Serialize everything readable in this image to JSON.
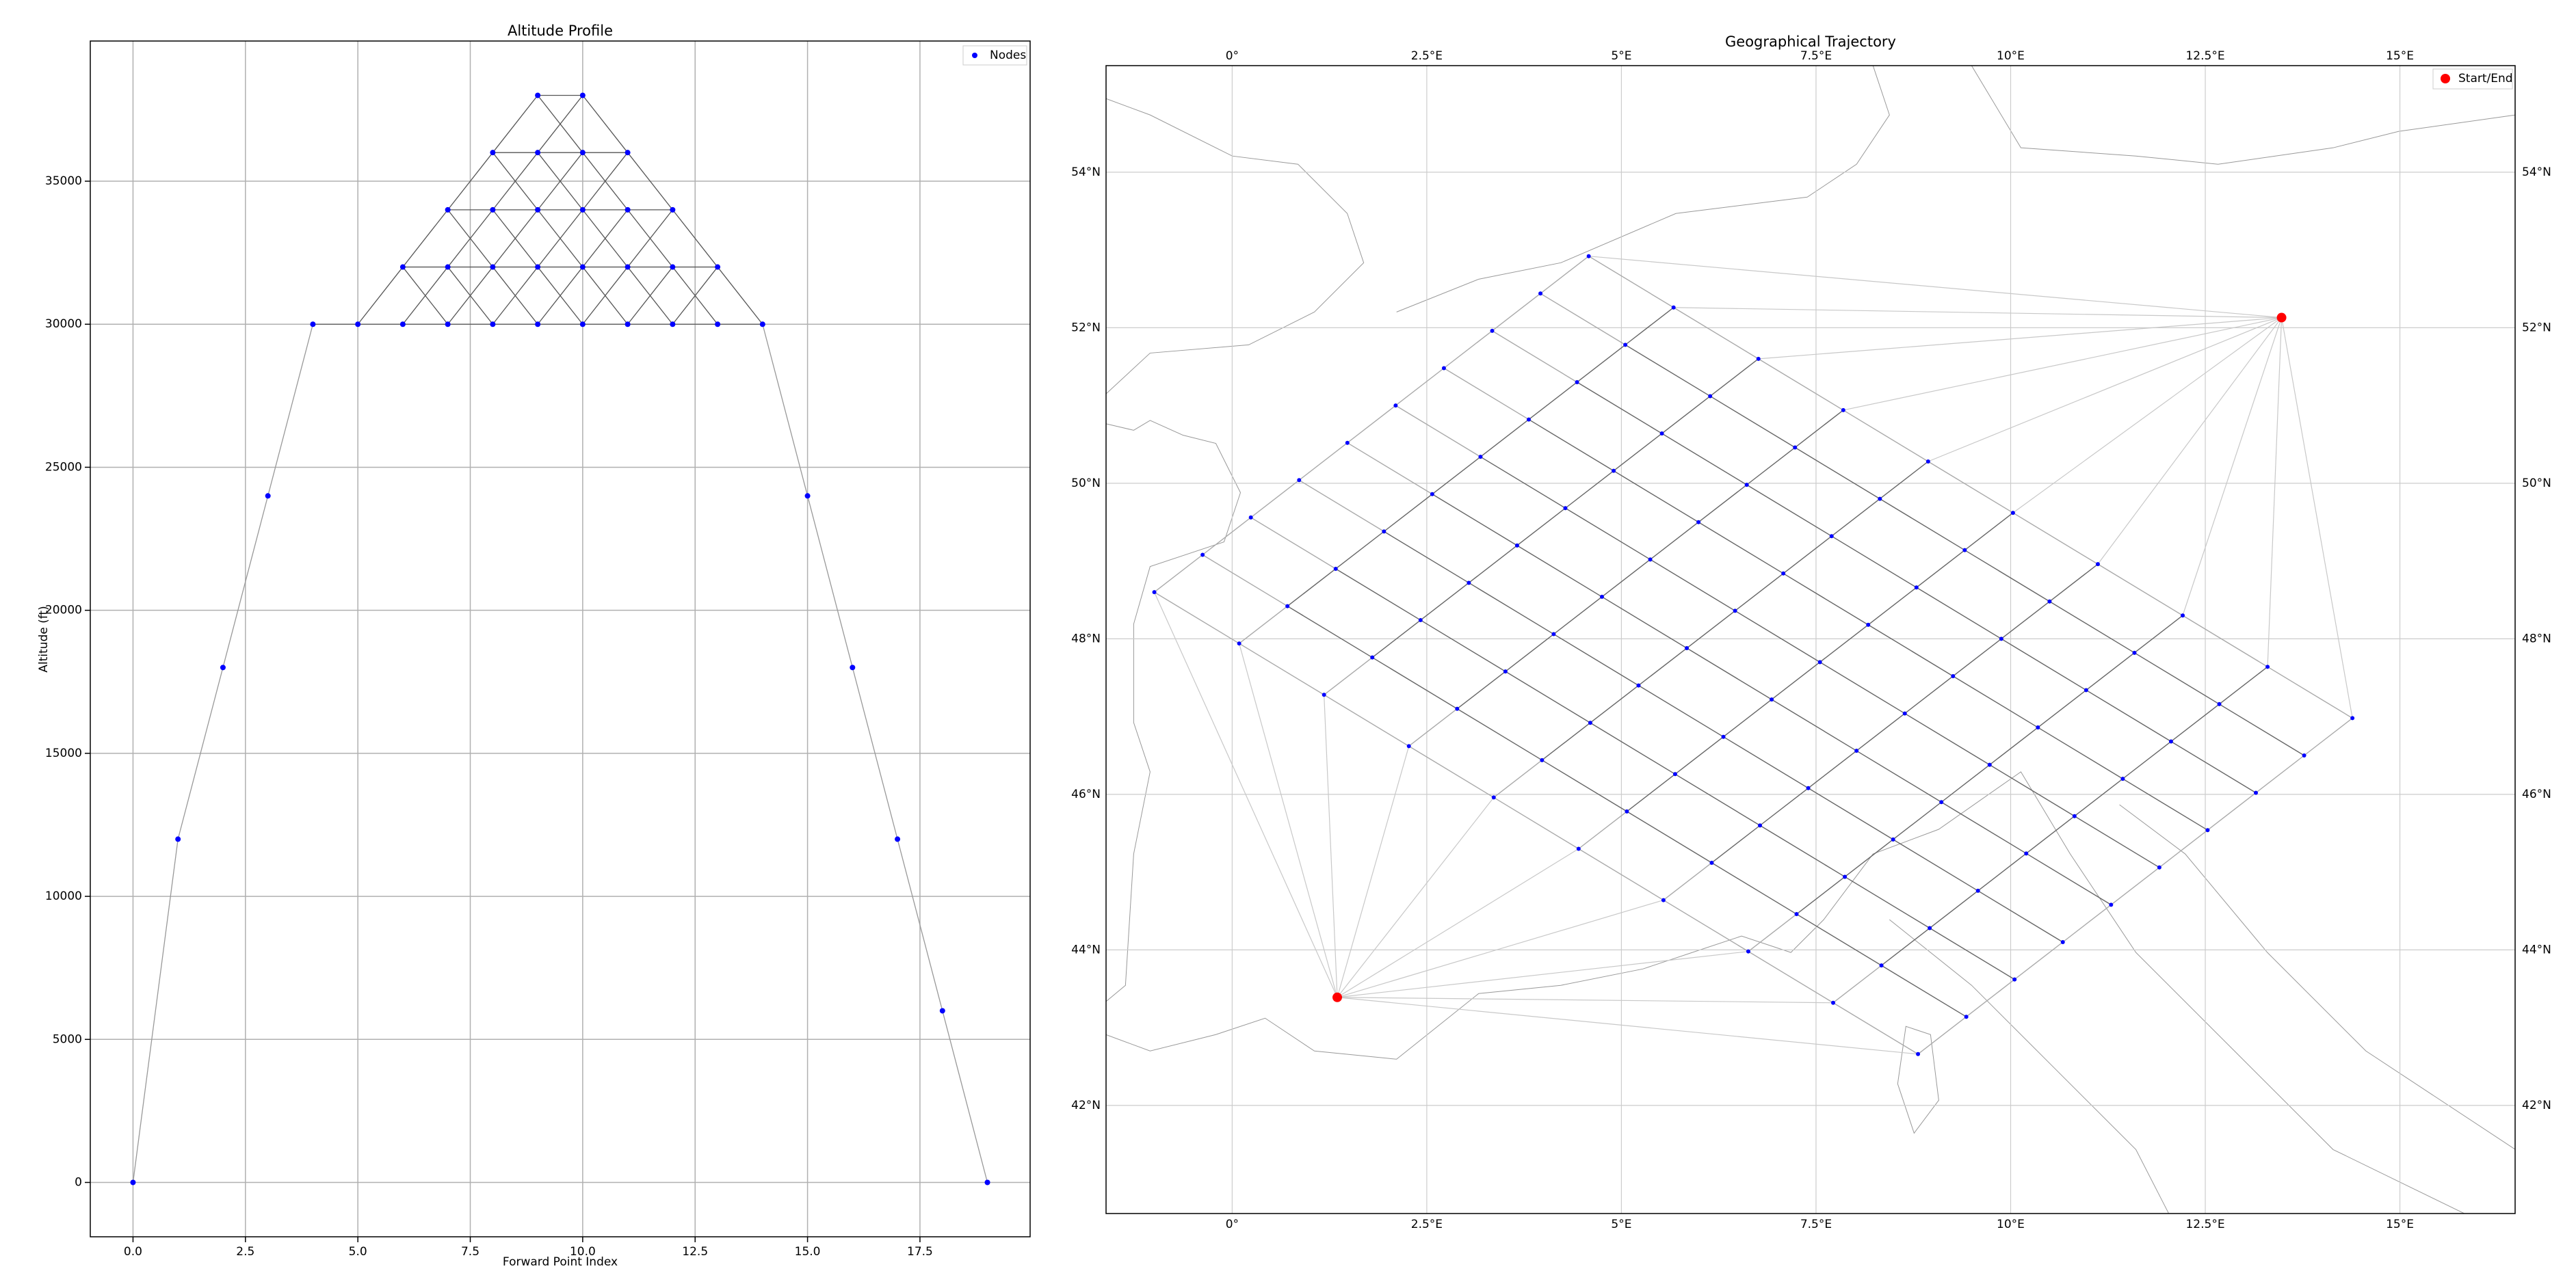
{
  "chart_data": [
    {
      "type": "scatter",
      "title": "Altitude Profile",
      "x_label": "Forward Point Index",
      "y_label": "Altitude (ft)",
      "series": [
        {
          "name": "Nodes",
          "color": "#0000ff",
          "x": [
            0,
            1,
            2,
            3,
            4,
            5,
            6,
            6,
            7,
            7,
            7,
            8,
            8,
            8,
            8,
            9,
            9,
            9,
            9,
            9,
            10,
            10,
            10,
            10,
            10,
            11,
            11,
            11,
            11,
            12,
            12,
            12,
            13,
            13,
            14,
            15,
            16,
            17,
            18,
            19
          ],
          "values": [
            0,
            12000,
            18000,
            24000,
            30000,
            30000,
            30000,
            32000,
            30000,
            32000,
            34000,
            30000,
            32000,
            34000,
            36000,
            30000,
            32000,
            34000,
            36000,
            38000,
            30000,
            32000,
            34000,
            36000,
            38000,
            30000,
            32000,
            34000,
            36000,
            30000,
            32000,
            34000,
            30000,
            32000,
            30000,
            24000,
            18000,
            12000,
            6000,
            0
          ]
        }
      ],
      "xlim": [
        -0.95,
        19.95
      ],
      "ylim": [
        -1900,
        39900
      ],
      "xticks": [
        {
          "value": 0,
          "label": "0.0"
        },
        2.5,
        {
          "value": 5,
          "label": "5.0"
        },
        7.5,
        {
          "value": 10,
          "label": "10.0"
        },
        12.5,
        {
          "value": 15,
          "label": "15.0"
        },
        17.5
      ],
      "yticks": [
        0,
        5000,
        10000,
        15000,
        20000,
        25000,
        30000,
        35000
      ],
      "grid": true,
      "legend": "upper right"
    },
    {
      "type": "map",
      "title": "Geographical Trajectory",
      "series": [
        {
          "name": "Start/End",
          "color": "#ff0000",
          "lon": [
            1.35,
            13.48
          ],
          "lat": [
            43.39,
            52.13
          ]
        }
      ],
      "node_color": "#0000ff",
      "nodes": {
        "lon": [
          [
            -1.0,
            -0.38,
            0.24,
            0.86,
            1.48,
            2.1,
            2.72,
            3.34,
            3.96,
            4.58
          ],
          [
            0.09,
            0.71,
            1.33,
            1.95,
            2.57,
            3.19,
            3.81,
            4.43,
            5.05,
            5.67
          ],
          [
            1.18,
            1.8,
            2.42,
            3.04,
            3.66,
            4.28,
            4.9,
            5.52,
            6.14,
            6.76
          ],
          [
            2.27,
            2.89,
            3.51,
            4.13,
            4.75,
            5.37,
            5.99,
            6.61,
            7.23,
            7.85
          ],
          [
            3.36,
            3.98,
            4.6,
            5.22,
            5.84,
            6.46,
            7.08,
            7.7,
            8.32,
            8.94
          ],
          [
            4.45,
            5.07,
            5.69,
            6.31,
            6.93,
            7.55,
            8.17,
            8.79,
            9.41,
            10.03
          ],
          [
            5.54,
            6.16,
            6.78,
            7.4,
            8.02,
            8.64,
            9.26,
            9.88,
            10.5,
            11.12
          ],
          [
            6.63,
            7.25,
            7.87,
            8.49,
            9.11,
            9.73,
            10.35,
            10.97,
            11.59,
            12.21
          ],
          [
            7.72,
            8.34,
            8.96,
            9.58,
            10.2,
            10.82,
            11.44,
            12.06,
            12.68,
            13.3
          ],
          [
            8.81,
            9.43,
            10.05,
            10.67,
            11.29,
            11.91,
            12.53,
            13.15,
            13.77,
            14.39
          ]
        ],
        "lat": [
          [
            48.6,
            49.08,
            49.56,
            50.04,
            50.52,
            51.0,
            51.48,
            51.96,
            52.44,
            52.92
          ],
          [
            47.94,
            48.42,
            48.9,
            49.38,
            49.86,
            50.34,
            50.82,
            51.3,
            51.78,
            52.26
          ],
          [
            47.28,
            47.76,
            48.24,
            48.72,
            49.2,
            49.68,
            50.16,
            50.64,
            51.12,
            51.6
          ],
          [
            46.62,
            47.1,
            47.58,
            48.06,
            48.54,
            49.02,
            49.5,
            49.98,
            50.46,
            50.94
          ],
          [
            45.96,
            46.44,
            46.92,
            47.4,
            47.88,
            48.36,
            48.84,
            49.32,
            49.8,
            50.28
          ],
          [
            45.3,
            45.78,
            46.26,
            46.74,
            47.22,
            47.7,
            48.18,
            48.66,
            49.14,
            49.62
          ],
          [
            44.64,
            45.12,
            45.6,
            46.08,
            46.56,
            47.04,
            47.52,
            48.0,
            48.48,
            48.96
          ],
          [
            43.98,
            44.46,
            44.94,
            45.42,
            45.9,
            46.38,
            46.86,
            47.34,
            47.82,
            48.3
          ],
          [
            43.32,
            43.8,
            44.28,
            44.76,
            45.24,
            45.72,
            46.2,
            46.68,
            47.16,
            47.64
          ],
          [
            42.66,
            43.14,
            43.62,
            44.1,
            44.58,
            45.06,
            45.54,
            46.02,
            46.5,
            46.98
          ]
        ]
      },
      "xlim": [
        -1.62,
        16.48
      ],
      "ylim": [
        40.61,
        55.37
      ],
      "xticks": [
        {
          "value": 0,
          "label": "0°"
        },
        {
          "value": 2.5,
          "label": "2.5°E"
        },
        {
          "value": 5,
          "label": "5°E"
        },
        {
          "value": 7.5,
          "label": "7.5°E"
        },
        {
          "value": 10,
          "label": "10°E"
        },
        {
          "value": 12.5,
          "label": "12.5°E"
        },
        {
          "value": 15,
          "label": "15°E"
        }
      ],
      "yticks": [
        {
          "value": 42,
          "label": "42°N"
        },
        {
          "value": 44,
          "label": "44°N"
        },
        {
          "value": 46,
          "label": "46°N"
        },
        {
          "value": 48,
          "label": "48°N"
        },
        {
          "value": 50,
          "label": "50°N"
        },
        {
          "value": 52,
          "label": "52°N"
        },
        {
          "value": 54,
          "label": "54°N"
        }
      ],
      "grid": true,
      "legend": "upper right"
    }
  ]
}
